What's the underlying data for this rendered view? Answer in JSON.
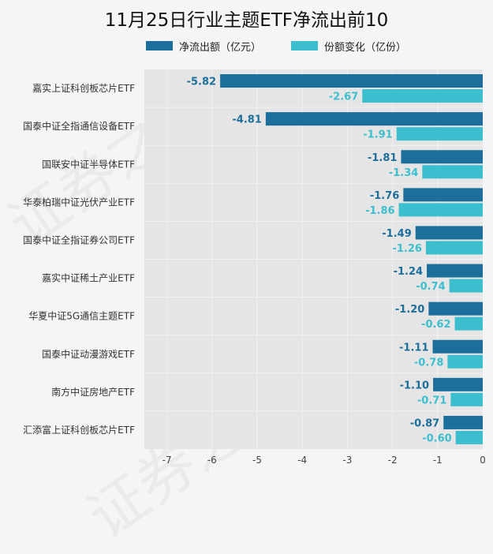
{
  "legend": {
    "series0": "净流出额（亿元）",
    "series1": "份额变化（亿份）"
  },
  "colors": {
    "series0": "#1c6e9b",
    "series1": "#3bbfcf",
    "plot_bg": "#e5e5e5",
    "grid": "#f2f2f2"
  },
  "chart_data": {
    "type": "bar",
    "orientation": "horizontal",
    "title": "11月25日行业主题ETF净流出前10",
    "categories": [
      "嘉实上证科创板芯片ETF",
      "国泰中证全指通信设备ETF",
      "国联安中证半导体ETF",
      "华泰柏瑞中证光伏产业ETF",
      "国泰中证全指证券公司ETF",
      "嘉实中证稀土产业ETF",
      "华夏中证5G通信主题ETF",
      "国泰中证动漫游戏ETF",
      "南方中证房地产ETF",
      "汇添富上证科创板芯片ETF"
    ],
    "series": [
      {
        "name": "净流出额（亿元）",
        "values": [
          -5.82,
          -4.81,
          -1.81,
          -1.76,
          -1.49,
          -1.24,
          -1.2,
          -1.11,
          -1.1,
          -0.87
        ]
      },
      {
        "name": "份额变化（亿份）",
        "values": [
          -2.67,
          -1.91,
          -1.34,
          -1.86,
          -1.26,
          -0.74,
          -0.62,
          -0.78,
          -0.71,
          -0.6
        ]
      }
    ],
    "xlim": [
      -7.5,
      0
    ],
    "xticks": [
      -7,
      -6,
      -5,
      -4,
      -3,
      -2,
      -1,
      0
    ],
    "xlabel": "",
    "ylabel": "",
    "grid": true,
    "legend_position": "top"
  }
}
